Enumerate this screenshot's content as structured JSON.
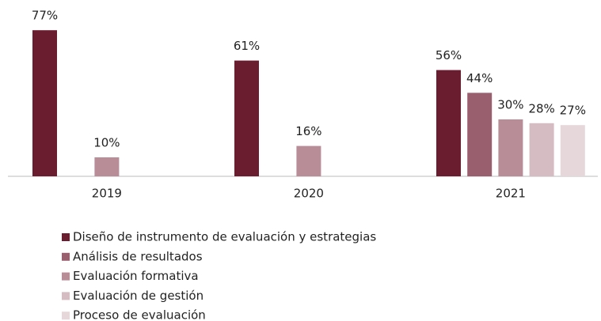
{
  "chart_data": {
    "type": "bar",
    "categories": [
      "2019",
      "2020",
      "2021"
    ],
    "ylim": [
      0,
      80
    ],
    "series": [
      {
        "name": "Diseño de instrumento de evaluación y estrategias",
        "color": "#6b1d30",
        "values": [
          77,
          61,
          56
        ],
        "value_labels": [
          "77%",
          "61%",
          "56%"
        ]
      },
      {
        "name": "Análisis de resultados",
        "color": "#9a5f6e",
        "values": [
          null,
          null,
          44
        ],
        "value_labels": [
          null,
          null,
          "44%"
        ]
      },
      {
        "name": "Evaluación formativa",
        "color": "#b98d98",
        "values": [
          10,
          16,
          30
        ],
        "value_labels": [
          "10%",
          "16%",
          "30%"
        ]
      },
      {
        "name": "Evaluación de gestión",
        "color": "#d4bcc2",
        "values": [
          null,
          null,
          28
        ],
        "value_labels": [
          null,
          null,
          "28%"
        ]
      },
      {
        "name": "Proceso de evaluación",
        "color": "#e6d7da",
        "values": [
          null,
          null,
          27
        ],
        "value_labels": [
          null,
          null,
          "27%"
        ]
      }
    ]
  }
}
